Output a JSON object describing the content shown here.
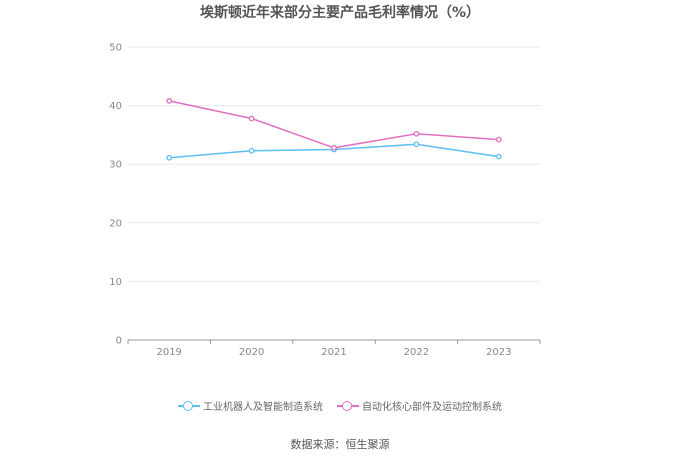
{
  "chart_data": {
    "type": "line",
    "title": "埃斯顿近年来部分主要产品毛利率情况（%）",
    "categories": [
      "2019",
      "2020",
      "2021",
      "2022",
      "2023"
    ],
    "series": [
      {
        "name": "工业机器人及智能制造系统",
        "color": "#5bc0f0",
        "values": [
          31.1,
          32.3,
          32.5,
          33.4,
          31.3
        ]
      },
      {
        "name": "自动化核心部件及运动控制系统",
        "color": "#e070c0",
        "values": [
          40.8,
          37.8,
          32.8,
          35.2,
          34.2
        ]
      }
    ],
    "ylim": [
      0,
      50
    ],
    "yticks": [
      0,
      10,
      20,
      30,
      40,
      50
    ],
    "grid": true,
    "legend": "bottom"
  },
  "source": "数据来源：恒生聚源"
}
